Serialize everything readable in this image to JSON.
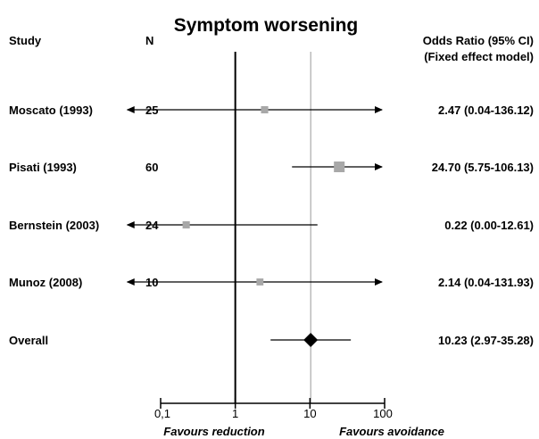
{
  "chart_data": {
    "type": "forest",
    "title": "Symptom worsening",
    "headers": {
      "study": "Study",
      "n": "N",
      "or_line1": "Odds Ratio (95% CI)",
      "or_line2": "(Fixed effect model)"
    },
    "x_scale": "log",
    "xlim": [
      0.1,
      100
    ],
    "x_ticks": [
      {
        "value": 0.1,
        "label": "0,1"
      },
      {
        "value": 1,
        "label": "1"
      },
      {
        "value": 10,
        "label": "10"
      },
      {
        "value": 100,
        "label": "100"
      }
    ],
    "reference_lines": [
      1,
      10.23
    ],
    "favours": {
      "left": "Favours reduction",
      "right": "Favours avoidance"
    },
    "studies": [
      {
        "label": "Moscato (1993)",
        "n": "25",
        "or": 2.47,
        "lo": 0.04,
        "hi": 136.12,
        "ci_text": "2.47 (0.04-136.12)",
        "arrow_left": true,
        "arrow_right": true,
        "weight": 0.35
      },
      {
        "label": "Pisati (1993)",
        "n": "60",
        "or": 24.7,
        "lo": 5.75,
        "hi": 106.13,
        "ci_text": "24.70 (5.75-106.13)",
        "arrow_left": false,
        "arrow_right": true,
        "weight": 1.0
      },
      {
        "label": "Bernstein (2003)",
        "n": "24",
        "or": 0.22,
        "lo": 0.0,
        "hi": 12.61,
        "ci_text": "0.22 (0.00-12.61)",
        "arrow_left": true,
        "arrow_right": false,
        "weight": 0.35
      },
      {
        "label": "Munoz (2008)",
        "n": "10",
        "or": 2.14,
        "lo": 0.04,
        "hi": 131.93,
        "ci_text": "2.14 (0.04-131.93)",
        "arrow_left": true,
        "arrow_right": true,
        "weight": 0.3
      }
    ],
    "overall": {
      "label": "Overall",
      "or": 10.23,
      "lo": 2.97,
      "hi": 35.28,
      "ci_text": "10.23 (2.97-35.28)"
    },
    "colors": {
      "marker": "#a8a8a8",
      "diamond": "#000000",
      "axis": "#000000",
      "ref_line": "#9a9a9a"
    }
  }
}
